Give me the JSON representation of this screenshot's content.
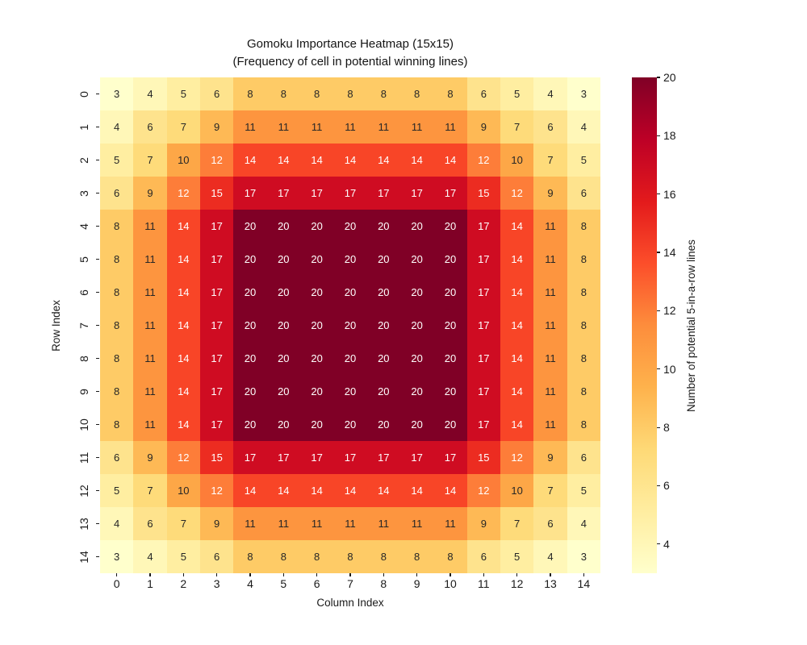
{
  "title": {
    "line1": "Gomoku Importance Heatmap (15x15)",
    "line2": "(Frequency of cell in potential winning lines)"
  },
  "axes": {
    "xlabel": "Column Index",
    "ylabel": "Row Index"
  },
  "colorbar": {
    "label": "Number of potential 5-in-a-row lines",
    "ticks": [
      20,
      18,
      16,
      14,
      12,
      10,
      8,
      6,
      4
    ],
    "gradient_stops_top_to_bottom": [
      "#800026",
      "#bd0026",
      "#e31a1c",
      "#fc4e2a",
      "#fd8d3c",
      "#feb24c",
      "#fed976",
      "#ffeda0",
      "#ffffcc"
    ]
  },
  "chart_data": {
    "type": "heatmap",
    "title": "Gomoku Importance Heatmap (15x15) (Frequency of cell in potential winning lines)",
    "xlabel": "Column Index",
    "ylabel": "Row Index",
    "colorbar_label": "Number of potential 5-in-a-row lines",
    "colormap": "YlOrRd",
    "vmin": 3,
    "vmax": 20,
    "x_tick_labels": [
      "0",
      "1",
      "2",
      "3",
      "4",
      "5",
      "6",
      "7",
      "8",
      "9",
      "10",
      "11",
      "12",
      "13",
      "14"
    ],
    "y_tick_labels": [
      "0",
      "1",
      "2",
      "3",
      "4",
      "5",
      "6",
      "7",
      "8",
      "9",
      "10",
      "11",
      "12",
      "13",
      "14"
    ],
    "matrix": [
      [
        3,
        4,
        5,
        6,
        8,
        8,
        8,
        8,
        8,
        8,
        8,
        6,
        5,
        4,
        3
      ],
      [
        4,
        6,
        7,
        9,
        11,
        11,
        11,
        11,
        11,
        11,
        11,
        9,
        7,
        6,
        4
      ],
      [
        5,
        7,
        10,
        12,
        14,
        14,
        14,
        14,
        14,
        14,
        14,
        12,
        10,
        7,
        5
      ],
      [
        6,
        9,
        12,
        15,
        17,
        17,
        17,
        17,
        17,
        17,
        17,
        15,
        12,
        9,
        6
      ],
      [
        8,
        11,
        14,
        17,
        20,
        20,
        20,
        20,
        20,
        20,
        20,
        17,
        14,
        11,
        8
      ],
      [
        8,
        11,
        14,
        17,
        20,
        20,
        20,
        20,
        20,
        20,
        20,
        17,
        14,
        11,
        8
      ],
      [
        8,
        11,
        14,
        17,
        20,
        20,
        20,
        20,
        20,
        20,
        20,
        17,
        14,
        11,
        8
      ],
      [
        8,
        11,
        14,
        17,
        20,
        20,
        20,
        20,
        20,
        20,
        20,
        17,
        14,
        11,
        8
      ],
      [
        8,
        11,
        14,
        17,
        20,
        20,
        20,
        20,
        20,
        20,
        20,
        17,
        14,
        11,
        8
      ],
      [
        8,
        11,
        14,
        17,
        20,
        20,
        20,
        20,
        20,
        20,
        20,
        17,
        14,
        11,
        8
      ],
      [
        8,
        11,
        14,
        17,
        20,
        20,
        20,
        20,
        20,
        20,
        20,
        17,
        14,
        11,
        8
      ],
      [
        6,
        9,
        12,
        15,
        17,
        17,
        17,
        17,
        17,
        17,
        17,
        15,
        12,
        9,
        6
      ],
      [
        5,
        7,
        10,
        12,
        14,
        14,
        14,
        14,
        14,
        14,
        14,
        12,
        10,
        7,
        5
      ],
      [
        4,
        6,
        7,
        9,
        11,
        11,
        11,
        11,
        11,
        11,
        11,
        9,
        7,
        6,
        4
      ],
      [
        3,
        4,
        5,
        6,
        8,
        8,
        8,
        8,
        8,
        8,
        8,
        6,
        5,
        4,
        3
      ]
    ],
    "value_colors": {
      "3": "#ffffcc",
      "4": "#fff7b8",
      "5": "#ffeea1",
      "6": "#fee38d",
      "7": "#fedb7a",
      "8": "#fecb66",
      "9": "#feb955",
      "10": "#fda747",
      "11": "#fd953f",
      "12": "#fd7d39",
      "14": "#f84527",
      "15": "#ec2c21",
      "17": "#cf0c22",
      "20": "#800026"
    },
    "annotation": {
      "dark_text": "#262626",
      "light_text": "#ffffff",
      "light_text_min_value": 12
    }
  }
}
